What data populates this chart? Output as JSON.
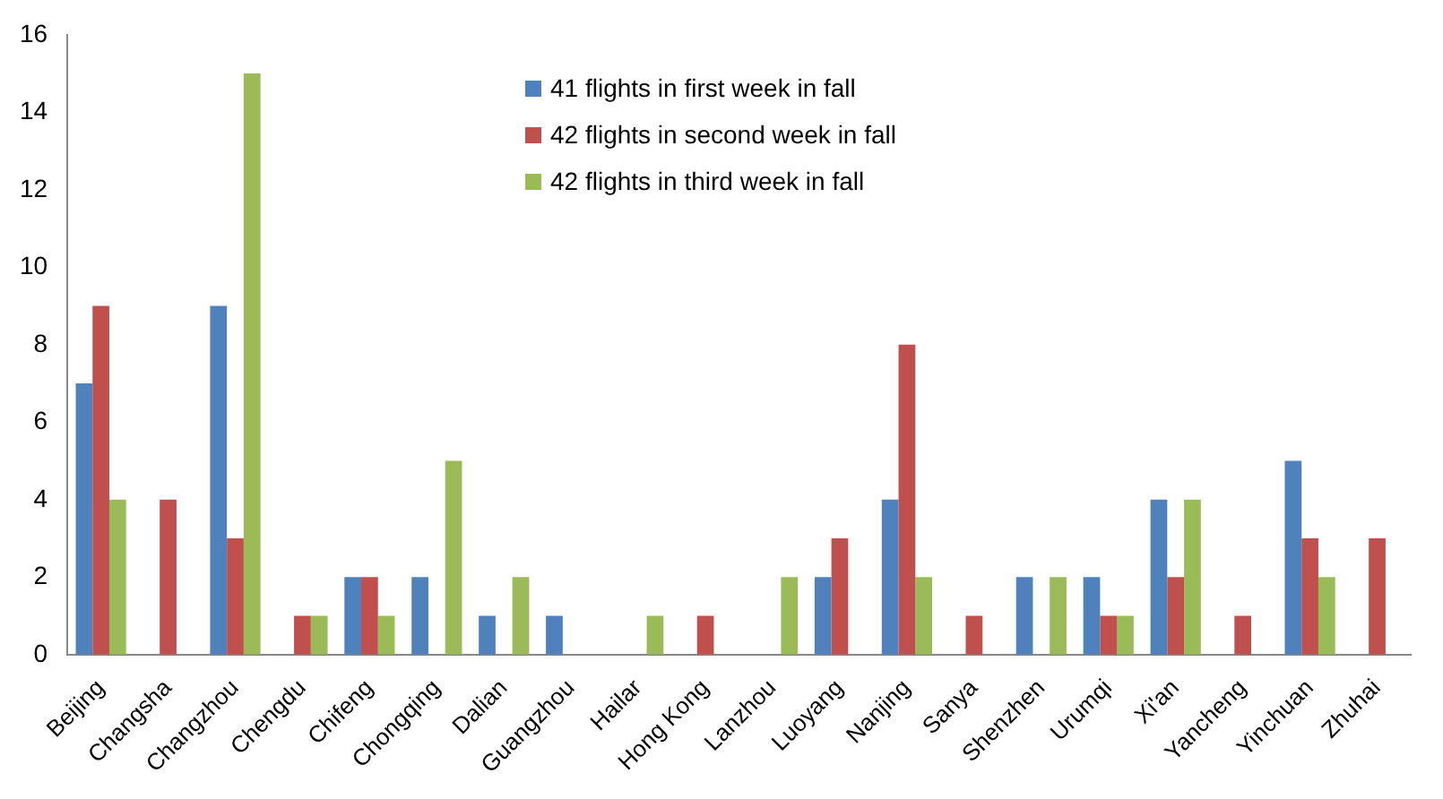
{
  "chart_data": {
    "type": "bar",
    "categories": [
      "Beijing",
      "Changsha",
      "Changzhou",
      "Chengdu",
      "Chifeng",
      "Chongqing",
      "Dalian",
      "Guangzhou",
      "Hailar",
      "Hong Kong",
      "Lanzhou",
      "Luoyang",
      "Nanjing",
      "Sanya",
      "Shenzhen",
      "Urumqi",
      "Xi'an",
      "Yancheng",
      "Yinchuan",
      "Zhuhai"
    ],
    "series": [
      {
        "name": "41 flights in first week in fall",
        "color": "#4f81bd",
        "values": [
          7,
          0,
          9,
          0,
          2,
          2,
          1,
          1,
          0,
          0,
          0,
          2,
          4,
          0,
          2,
          2,
          4,
          0,
          5,
          0
        ]
      },
      {
        "name": "42 flights in second week in fall",
        "color": "#c0504d",
        "values": [
          9,
          4,
          3,
          1,
          2,
          0,
          0,
          0,
          0,
          1,
          0,
          3,
          8,
          1,
          0,
          1,
          2,
          1,
          3,
          3
        ]
      },
      {
        "name": "42 flights in third week in fall",
        "color": "#9bbb59",
        "values": [
          4,
          0,
          15,
          1,
          1,
          5,
          2,
          0,
          1,
          0,
          2,
          0,
          2,
          0,
          2,
          1,
          4,
          0,
          2,
          0
        ]
      }
    ],
    "ylim": [
      0,
      16
    ],
    "yticks": [
      0,
      2,
      4,
      6,
      8,
      10,
      12,
      14,
      16
    ],
    "grid": false,
    "legend": "top"
  }
}
